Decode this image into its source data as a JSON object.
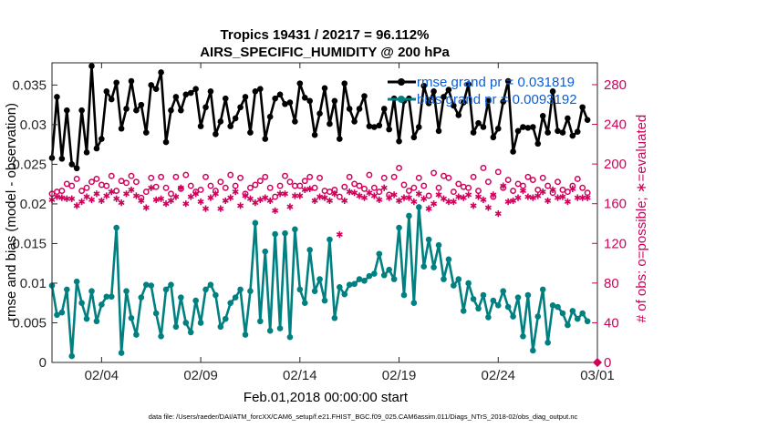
{
  "chart_data": {
    "type": "line",
    "title": "Tropics 19431 / 20217 = 96.112%",
    "subtitle": "AIRS_SPECIFIC_HUMIDITY @ 200 hPa",
    "xlabel": "Feb.01,2018 00:00:00 start",
    "ylabel_left": "rmse and bias (model - observation)",
    "ylabel_right": "# of obs: o=possible; ∗=evaluated",
    "x_ticks": [
      "02/04",
      "02/09",
      "02/14",
      "02/19",
      "02/24",
      "03/01"
    ],
    "x_tick_days": [
      3,
      8,
      13,
      18,
      23,
      28
    ],
    "xlim": [
      0.5,
      28
    ],
    "ylim_left": [
      0,
      0.0378
    ],
    "y_ticks_left": [
      "0",
      "0.005",
      "0.01",
      "0.015",
      "0.02",
      "0.025",
      "0.03",
      "0.035"
    ],
    "y_tick_values_left": [
      0,
      0.005,
      0.01,
      0.015,
      0.02,
      0.025,
      0.03,
      0.035
    ],
    "ylim_right": [
      0,
      302
    ],
    "y_ticks_right": [
      "0",
      "40",
      "80",
      "120",
      "160",
      "200",
      "240",
      "280"
    ],
    "y_tick_values_right": [
      0,
      40,
      80,
      120,
      160,
      200,
      240,
      280
    ],
    "legend": [
      {
        "label": "rmse grand pr = 0.031819",
        "color": "#000000"
      },
      {
        "label": "bias grand pr = 0.0093192",
        "color": "#008080"
      }
    ],
    "colors": {
      "rmse": "#000000",
      "bias": "#008080",
      "obs": "#d1005a",
      "legend_text": "#0b5ed7"
    },
    "x_start": 0.5,
    "x_step": 0.25,
    "series": [
      {
        "name": "rmse",
        "values": [
          0.0258,
          0.0335,
          0.0257,
          0.0318,
          0.025,
          0.0245,
          0.0318,
          0.0265,
          0.0374,
          0.027,
          0.0282,
          0.0342,
          0.0332,
          0.0353,
          0.0295,
          0.032,
          0.0355,
          0.0318,
          0.0325,
          0.029,
          0.035,
          0.0345,
          0.0366,
          0.0278,
          0.0318,
          0.0335,
          0.0318,
          0.0338,
          0.034,
          0.0345,
          0.0298,
          0.0322,
          0.0342,
          0.0288,
          0.0304,
          0.0333,
          0.0298,
          0.0308,
          0.0322,
          0.0335,
          0.029,
          0.0342,
          0.0345,
          0.0282,
          0.031,
          0.0333,
          0.0338,
          0.0326,
          0.0328,
          0.0304,
          0.0352,
          0.0334,
          0.033,
          0.0287,
          0.0314,
          0.0346,
          0.0301,
          0.033,
          0.0282,
          0.0352,
          0.032,
          0.0304,
          0.032,
          0.0336,
          0.0298,
          0.0297,
          0.0299,
          0.032,
          0.0294,
          0.0333,
          0.0279,
          0.033,
          0.0333,
          0.0284,
          0.0297,
          0.0349,
          0.0327,
          0.0342,
          0.0292,
          0.0335,
          0.0344,
          0.0324,
          0.0312,
          0.0328,
          0.0351,
          0.029,
          0.0302,
          0.0297,
          0.033,
          0.0284,
          0.0295,
          0.0329,
          0.0355,
          0.0266,
          0.0292,
          0.0297,
          0.0296,
          0.0297,
          0.0276,
          0.0311,
          0.029,
          0.0342,
          0.0292,
          0.029,
          0.0308,
          0.0286,
          0.0291,
          0.0322,
          0.0306
        ]
      },
      {
        "name": "bias",
        "values": [
          0.0097,
          0.006,
          0.0063,
          0.0092,
          0.0008,
          0.0102,
          0.0075,
          0.0055,
          0.009,
          0.0052,
          0.0073,
          0.0083,
          0.0083,
          0.017,
          0.0012,
          0.009,
          0.0056,
          0.0035,
          0.0082,
          0.0098,
          0.0097,
          0.0062,
          0.0033,
          0.0092,
          0.0098,
          0.0045,
          0.0082,
          0.005,
          0.0038,
          0.0078,
          0.005,
          0.0092,
          0.0098,
          0.0085,
          0.0045,
          0.0055,
          0.0075,
          0.0082,
          0.0092,
          0.0035,
          0.009,
          0.0176,
          0.0052,
          0.014,
          0.004,
          0.0162,
          0.0043,
          0.0163,
          0.0032,
          0.0168,
          0.0092,
          0.0075,
          0.0142,
          0.009,
          0.0105,
          0.0078,
          0.0155,
          0.0056,
          0.0095,
          0.0086,
          0.0098,
          0.0099,
          0.0105,
          0.0103,
          0.0109,
          0.0112,
          0.0137,
          0.011,
          0.0117,
          0.0105,
          0.017,
          0.0085,
          0.0185,
          0.0075,
          0.0196,
          0.0121,
          0.0155,
          0.012,
          0.0148,
          0.0105,
          0.013,
          0.0097,
          0.0105,
          0.0065,
          0.01,
          0.008,
          0.0068,
          0.0085,
          0.0057,
          0.0078,
          0.0072,
          0.009,
          0.007,
          0.0058,
          0.0082,
          0.0033,
          0.0085,
          0.0015,
          0.0058,
          0.0092,
          0.0025,
          0.0072,
          0.007,
          0.0062,
          0.0047,
          0.0065,
          0.0055,
          0.0062,
          0.0052
        ]
      },
      {
        "name": "obs possible",
        "marker": "o",
        "values": [
          170,
          172,
          173,
          180,
          178,
          185,
          173,
          176,
          182,
          185,
          179,
          178,
          188,
          173,
          183,
          181,
          188,
          182,
          166,
          172,
          186,
          177,
          187,
          176,
          170,
          187,
          175,
          189,
          178,
          172,
          174,
          187,
          178,
          173,
          182,
          176,
          189,
          178,
          186,
          170,
          176,
          179,
          183,
          187,
          176,
          167,
          178,
          188,
          182,
          178,
          178,
          183,
          187,
          176,
          186,
          173,
          172,
          174,
          167,
          177,
          187,
          180,
          178,
          175,
          189,
          176,
          172,
          186,
          169,
          187,
          196,
          179,
          173,
          176,
          186,
          178,
          168,
          191,
          176,
          188,
          186,
          172,
          180,
          177,
          176,
          187,
          173,
          196,
          182,
          167,
          192,
          176,
          184,
          173,
          180,
          178,
          187,
          184,
          174,
          186,
          178,
          171,
          182,
          174,
          172,
          178,
          185,
          176,
          171
        ]
      },
      {
        "name": "obs evaluated",
        "marker": "*",
        "values": [
          164,
          167,
          166,
          165,
          165,
          158,
          162,
          167,
          164,
          170,
          163,
          168,
          172,
          165,
          161,
          170,
          174,
          168,
          163,
          156,
          176,
          164,
          165,
          160,
          163,
          167,
          176,
          160,
          167,
          170,
          162,
          155,
          166,
          170,
          155,
          163,
          166,
          172,
          158,
          168,
          165,
          161,
          164,
          166,
          163,
          153,
          170,
          170,
          157,
          168,
          168,
          174,
          175,
          163,
          167,
          166,
          163,
          170,
          129,
          163,
          172,
          171,
          168,
          166,
          171,
          168,
          164,
          176,
          166,
          169,
          163,
          166,
          166,
          162,
          170,
          165,
          155,
          160,
          169,
          165,
          162,
          162,
          167,
          166,
          169,
          158,
          167,
          164,
          156,
          169,
          150,
          178,
          162,
          163,
          166,
          173,
          167,
          166,
          168,
          172,
          163,
          174,
          166,
          167,
          162,
          175,
          166,
          166,
          166
        ]
      }
    ]
  },
  "footer": "data file: /Users/raeder/DAI/ATM_forcXX/CAM6_setup/f.e21.FHIST_BGC.f09_025.CAM6assim.011/Diags_NTrS_2018-02/obs_diag_output.nc"
}
